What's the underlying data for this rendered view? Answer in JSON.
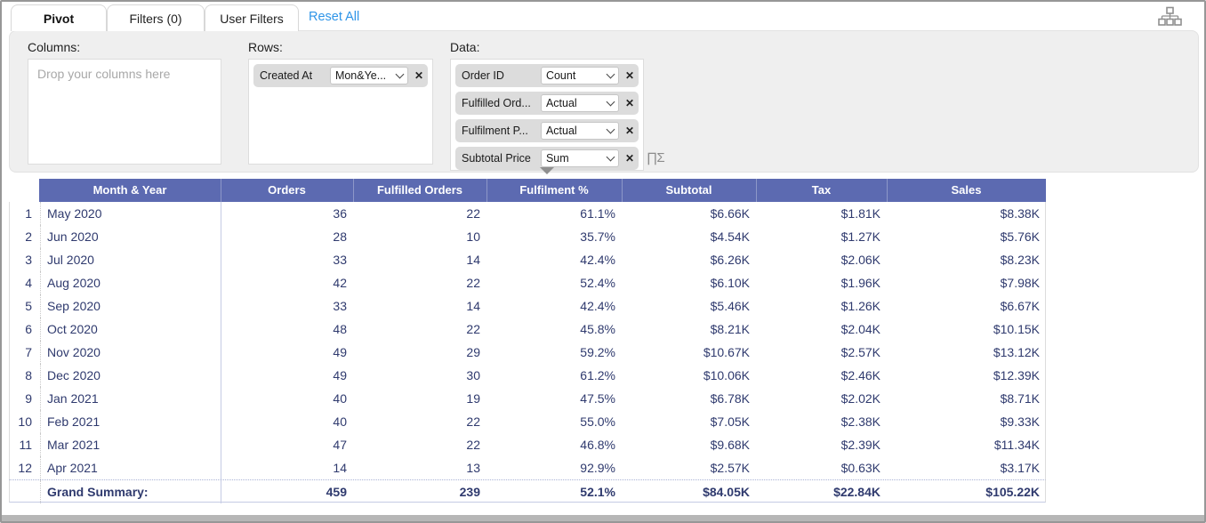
{
  "tabs": [
    {
      "label": "Pivot",
      "active": true
    },
    {
      "label": "Filters (0)",
      "active": false
    },
    {
      "label": "User Filters",
      "active": false
    }
  ],
  "reset_all_label": "Reset All",
  "panel": {
    "columns_label": "Columns:",
    "columns_placeholder": "Drop your columns here",
    "rows_label": "Rows:",
    "rows_fields": [
      {
        "name": "Created At",
        "value": "Mon&Ye..."
      }
    ],
    "data_label": "Data:",
    "data_fields": [
      {
        "name": "Order ID",
        "value": "Count"
      },
      {
        "name": "Fulfilled Ord...",
        "value": "Actual"
      },
      {
        "name": "Fulfilment P...",
        "value": "Actual"
      },
      {
        "name": "Subtotal Price",
        "value": "Sum"
      }
    ]
  },
  "table": {
    "columns": [
      "Month & Year",
      "Orders",
      "Fulfilled Orders",
      "Fulfilment %",
      "Subtotal",
      "Tax",
      "Sales"
    ],
    "rows": [
      {
        "num": "1",
        "month": "May 2020",
        "orders": "36",
        "fulfilled": "22",
        "pct": "61.1%",
        "subtotal": "$6.66K",
        "tax": "$1.81K",
        "sales": "$8.38K"
      },
      {
        "num": "2",
        "month": "Jun 2020",
        "orders": "28",
        "fulfilled": "10",
        "pct": "35.7%",
        "subtotal": "$4.54K",
        "tax": "$1.27K",
        "sales": "$5.76K"
      },
      {
        "num": "3",
        "month": "Jul 2020",
        "orders": "33",
        "fulfilled": "14",
        "pct": "42.4%",
        "subtotal": "$6.26K",
        "tax": "$2.06K",
        "sales": "$8.23K"
      },
      {
        "num": "4",
        "month": "Aug 2020",
        "orders": "42",
        "fulfilled": "22",
        "pct": "52.4%",
        "subtotal": "$6.10K",
        "tax": "$1.96K",
        "sales": "$7.98K"
      },
      {
        "num": "5",
        "month": "Sep 2020",
        "orders": "33",
        "fulfilled": "14",
        "pct": "42.4%",
        "subtotal": "$5.46K",
        "tax": "$1.26K",
        "sales": "$6.67K"
      },
      {
        "num": "6",
        "month": "Oct 2020",
        "orders": "48",
        "fulfilled": "22",
        "pct": "45.8%",
        "subtotal": "$8.21K",
        "tax": "$2.04K",
        "sales": "$10.15K"
      },
      {
        "num": "7",
        "month": "Nov 2020",
        "orders": "49",
        "fulfilled": "29",
        "pct": "59.2%",
        "subtotal": "$10.67K",
        "tax": "$2.57K",
        "sales": "$13.12K"
      },
      {
        "num": "8",
        "month": "Dec 2020",
        "orders": "49",
        "fulfilled": "30",
        "pct": "61.2%",
        "subtotal": "$10.06K",
        "tax": "$2.46K",
        "sales": "$12.39K"
      },
      {
        "num": "9",
        "month": "Jan 2021",
        "orders": "40",
        "fulfilled": "19",
        "pct": "47.5%",
        "subtotal": "$6.78K",
        "tax": "$2.02K",
        "sales": "$8.71K"
      },
      {
        "num": "10",
        "month": "Feb 2021",
        "orders": "40",
        "fulfilled": "22",
        "pct": "55.0%",
        "subtotal": "$7.05K",
        "tax": "$2.38K",
        "sales": "$9.33K"
      },
      {
        "num": "11",
        "month": "Mar 2021",
        "orders": "47",
        "fulfilled": "22",
        "pct": "46.8%",
        "subtotal": "$9.68K",
        "tax": "$2.39K",
        "sales": "$11.34K"
      },
      {
        "num": "12",
        "month": "Apr 2021",
        "orders": "14",
        "fulfilled": "13",
        "pct": "92.9%",
        "subtotal": "$2.57K",
        "tax": "$0.63K",
        "sales": "$3.17K"
      }
    ],
    "summary": {
      "label": "Grand Summary:",
      "orders": "459",
      "fulfilled": "239",
      "pct": "52.1%",
      "subtotal": "$84.05K",
      "tax": "$22.84K",
      "sales": "$105.22K"
    }
  },
  "icons": {
    "top_right": "hierarchy-icon",
    "data_overflow": "scroll-down-indicator",
    "summary_function": "sigma-chart-icon",
    "summary_glyph": "∏Σ",
    "dropdown": "chevron-down-icon",
    "remove_glyph": "✕"
  },
  "colors": {
    "header_bg": "#5c6ab1",
    "table_text": "#2f3a6e",
    "link_blue": "#2f95e8",
    "panel_bg": "#efefef"
  }
}
